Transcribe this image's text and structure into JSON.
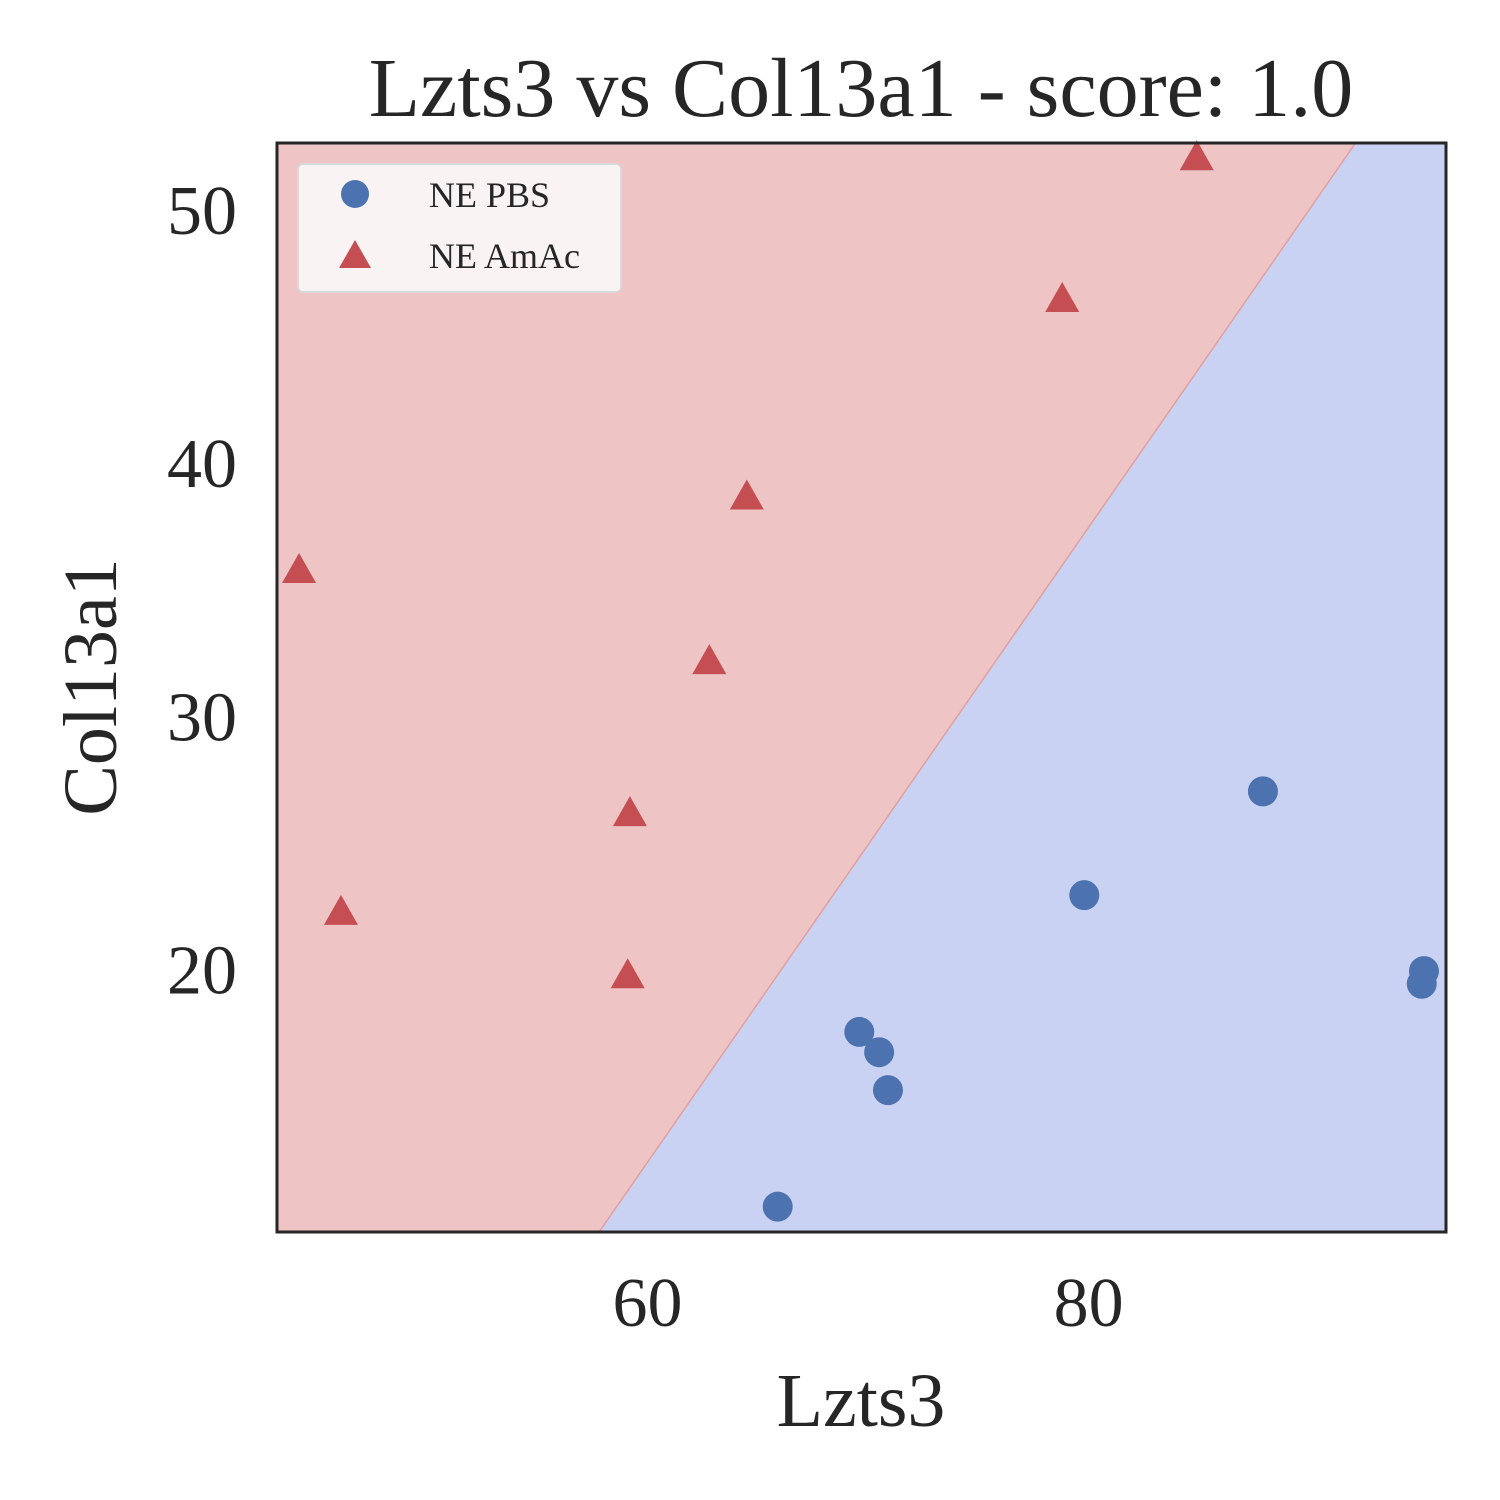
{
  "chart_data": {
    "type": "scatter",
    "title": "Lzts3 vs Col13a1 - score: 1.0",
    "xlabel": "Lzts3",
    "ylabel": "Col13a1",
    "xlim": [
      43.2,
      96.2
    ],
    "ylim": [
      9.6,
      52.6
    ],
    "xticks": [
      60,
      80
    ],
    "yticks": [
      20,
      30,
      40,
      50
    ],
    "grid": false,
    "legend_position": "top-left",
    "decision_boundary": {
      "points": [
        [
          57.8,
          9.6
        ],
        [
          92.1,
          52.6
        ]
      ],
      "left_region_color": "#eec4c4",
      "right_region_color": "#c9d2f2"
    },
    "series": [
      {
        "name": "NE PBS",
        "marker": "circle",
        "color": "#4c72b0",
        "points": [
          [
            65.9,
            10.6
          ],
          [
            69.6,
            17.5
          ],
          [
            70.5,
            16.7
          ],
          [
            70.9,
            15.2
          ],
          [
            79.8,
            22.9
          ],
          [
            87.9,
            27.0
          ],
          [
            95.2,
            19.9
          ],
          [
            95.1,
            19.4
          ]
        ]
      },
      {
        "name": "NE AmAc",
        "marker": "triangle",
        "color": "#c44e52",
        "points": [
          [
            44.2,
            35.7
          ],
          [
            46.1,
            22.2
          ],
          [
            59.2,
            26.1
          ],
          [
            59.1,
            19.7
          ],
          [
            62.8,
            32.1
          ],
          [
            64.5,
            38.6
          ],
          [
            78.8,
            46.4
          ],
          [
            84.9,
            52.0
          ]
        ]
      }
    ]
  }
}
